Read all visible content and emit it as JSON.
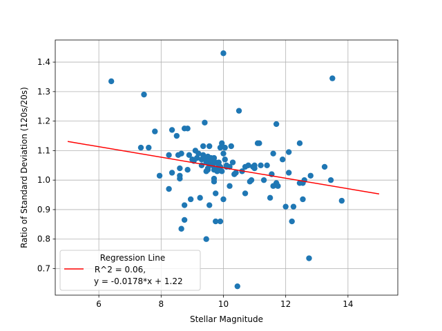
{
  "chart_data": {
    "type": "scatter",
    "xlabel": "Stellar Magnitude",
    "ylabel": "Ratio of Standard Deviation (120s/20s)",
    "xlim": [
      4.6,
      15.6
    ],
    "ylim": [
      0.61,
      1.475
    ],
    "xticks": [
      6,
      8,
      10,
      12,
      14
    ],
    "yticks": [
      0.7,
      0.8,
      0.9,
      1.0,
      1.1,
      1.2,
      1.3,
      1.4
    ],
    "xtick_labels": [
      "6",
      "8",
      "10",
      "12",
      "14"
    ],
    "ytick_labels": [
      "0.7",
      "0.8",
      "0.9",
      "1.0",
      "1.1",
      "1.2",
      "1.3",
      "1.4"
    ],
    "grid": true,
    "points": [
      [
        6.4,
        1.335
      ],
      [
        7.45,
        1.29
      ],
      [
        7.35,
        1.11
      ],
      [
        7.6,
        1.11
      ],
      [
        7.8,
        1.165
      ],
      [
        7.95,
        1.015
      ],
      [
        8.25,
        0.97
      ],
      [
        8.25,
        1.085
      ],
      [
        8.35,
        1.17
      ],
      [
        8.35,
        1.025
      ],
      [
        8.5,
        1.15
      ],
      [
        8.55,
        1.085
      ],
      [
        8.6,
        1.005
      ],
      [
        8.6,
        1.015
      ],
      [
        8.65,
        1.09
      ],
      [
        8.6,
        1.04
      ],
      [
        8.65,
        0.835
      ],
      [
        8.75,
        0.865
      ],
      [
        8.75,
        0.915
      ],
      [
        8.75,
        1.175
      ],
      [
        8.85,
        1.175
      ],
      [
        8.85,
        1.035
      ],
      [
        8.9,
        1.085
      ],
      [
        8.95,
        0.935
      ],
      [
        9.0,
        1.07
      ],
      [
        9.05,
        1.065
      ],
      [
        9.1,
        1.1
      ],
      [
        9.15,
        1.075
      ],
      [
        9.2,
        1.09
      ],
      [
        9.25,
        0.94
      ],
      [
        9.3,
        1.07
      ],
      [
        9.3,
        1.05
      ],
      [
        9.35,
        1.115
      ],
      [
        9.35,
        1.085
      ],
      [
        9.4,
        1.195
      ],
      [
        9.4,
        1.075
      ],
      [
        9.45,
        1.06
      ],
      [
        9.45,
        1.03
      ],
      [
        9.45,
        0.8
      ],
      [
        9.5,
        1.035
      ],
      [
        9.5,
        1.08
      ],
      [
        9.5,
        1.04
      ],
      [
        9.55,
        1.115
      ],
      [
        9.55,
        1.07
      ],
      [
        9.55,
        1.055
      ],
      [
        9.55,
        0.915
      ],
      [
        9.6,
        1.075
      ],
      [
        9.6,
        1.06
      ],
      [
        9.65,
        1.05
      ],
      [
        9.65,
        1.065
      ],
      [
        9.7,
        1.075
      ],
      [
        9.7,
        1.035
      ],
      [
        9.7,
        1.005
      ],
      [
        9.7,
        0.995
      ],
      [
        9.75,
        1.06
      ],
      [
        9.75,
        0.955
      ],
      [
        9.75,
        0.86
      ],
      [
        9.8,
        1.04
      ],
      [
        9.8,
        1.03
      ],
      [
        9.85,
        1.06
      ],
      [
        9.85,
        1.05
      ],
      [
        9.9,
        1.11
      ],
      [
        9.9,
        1.045
      ],
      [
        9.9,
        0.86
      ],
      [
        9.95,
        1.125
      ],
      [
        9.95,
        1.03
      ],
      [
        10.0,
        1.43
      ],
      [
        10.0,
        1.09
      ],
      [
        10.0,
        0.935
      ],
      [
        10.05,
        1.11
      ],
      [
        10.05,
        1.07
      ],
      [
        10.1,
        1.045
      ],
      [
        10.1,
        1.05
      ],
      [
        10.2,
        1.045
      ],
      [
        10.2,
        0.98
      ],
      [
        10.25,
        1.115
      ],
      [
        10.3,
        1.06
      ],
      [
        10.35,
        1.02
      ],
      [
        10.4,
        1.025
      ],
      [
        10.45,
        0.64
      ],
      [
        10.5,
        1.235
      ],
      [
        10.6,
        1.03
      ],
      [
        10.7,
        0.955
      ],
      [
        10.7,
        1.045
      ],
      [
        10.8,
        1.05
      ],
      [
        10.85,
        0.995
      ],
      [
        10.9,
        1.0
      ],
      [
        10.95,
        1.045
      ],
      [
        11.0,
        1.05
      ],
      [
        11.0,
        1.04
      ],
      [
        11.1,
        1.125
      ],
      [
        11.15,
        1.125
      ],
      [
        11.2,
        1.05
      ],
      [
        11.3,
        1.0
      ],
      [
        11.4,
        1.05
      ],
      [
        11.5,
        0.94
      ],
      [
        11.55,
        1.02
      ],
      [
        11.6,
        1.09
      ],
      [
        11.6,
        0.98
      ],
      [
        11.7,
        1.19
      ],
      [
        11.7,
        0.99
      ],
      [
        11.75,
        0.98
      ],
      [
        11.9,
        1.07
      ],
      [
        12.0,
        0.91
      ],
      [
        12.1,
        1.095
      ],
      [
        12.1,
        1.025
      ],
      [
        12.2,
        0.86
      ],
      [
        12.25,
        0.91
      ],
      [
        12.45,
        1.125
      ],
      [
        12.45,
        0.99
      ],
      [
        12.55,
        0.935
      ],
      [
        12.55,
        0.99
      ],
      [
        12.6,
        1.0
      ],
      [
        12.75,
        0.735
      ],
      [
        12.8,
        1.015
      ],
      [
        13.25,
        1.045
      ],
      [
        13.45,
        1.0
      ],
      [
        13.5,
        1.345
      ],
      [
        13.8,
        0.93
      ]
    ],
    "regression": {
      "x": [
        5.0,
        15.0
      ],
      "y": [
        1.131,
        0.953
      ]
    },
    "legend": {
      "position": "lower-left",
      "title": "Regression Line",
      "line1": " R^2 = 0.06,",
      "line2": "y = -0.0178*x + 1.22"
    },
    "colors": {
      "points": "#1f77b4",
      "regression": "#ff0000",
      "grid": "#b0b0b0"
    }
  }
}
